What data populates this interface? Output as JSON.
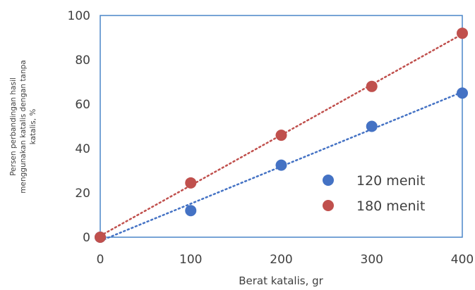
{
  "chart_data": {
    "type": "scatter",
    "xlabel": "Berat katalis, gr",
    "ylabel_lines": [
      "Persen perbandingan hasil",
      "menggunakan katalis dengan tanpa",
      "katalis, %"
    ],
    "xlim": [
      0,
      400
    ],
    "ylim": [
      0,
      100
    ],
    "xticks": [
      0,
      100,
      200,
      300,
      400
    ],
    "yticks": [
      0,
      20,
      40,
      60,
      80,
      100
    ],
    "grid": false,
    "legend_position": "lower-right",
    "trendline": "linear-dotted",
    "series": [
      {
        "name": "120 menit",
        "color": "#4472c4",
        "x": [
          0,
          100,
          200,
          300,
          400
        ],
        "y": [
          0,
          12,
          32.5,
          50,
          65
        ]
      },
      {
        "name": "180 menit",
        "color": "#c0504d",
        "x": [
          0,
          100,
          200,
          300,
          400
        ],
        "y": [
          0,
          24.5,
          46,
          68,
          92
        ]
      }
    ]
  }
}
